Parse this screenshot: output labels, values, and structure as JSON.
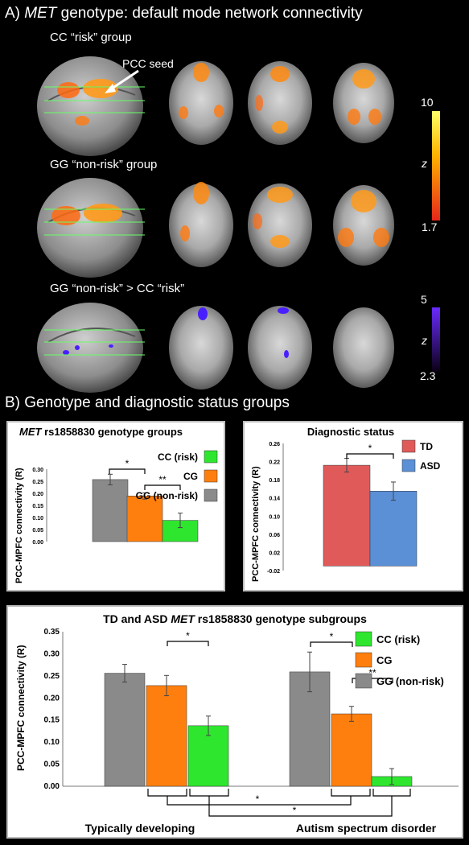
{
  "panel_a": {
    "title_prefix": "A) ",
    "title_gene": "MET",
    "title_rest": " genotype: default mode network connectivity",
    "rows": [
      {
        "label": "CC “risk” group"
      },
      {
        "label": "GG “non-risk” group"
      },
      {
        "label": "GG “non-risk” > CC “risk”"
      }
    ],
    "seed_label": "PCC seed",
    "colorbar1": {
      "max": "10",
      "min": "1.7",
      "axis": "z"
    },
    "colorbar2": {
      "max": "5",
      "min": "2.3",
      "axis": "z"
    }
  },
  "panel_b": {
    "title": "B) Genotype and diagnostic status groups"
  },
  "colors": {
    "gray": "#8a8a8a",
    "orange": "#ff7f0e",
    "green": "#2ee62e",
    "td_red": "#e05a5a",
    "asd_blue": "#5b8fd6"
  },
  "chart_data": [
    {
      "type": "bar",
      "title_gene": "MET",
      "title_rest": " rs1858830 genotype groups",
      "ylabel": "PCC-MPFC connectivity (R)",
      "ylim": [
        0,
        0.3
      ],
      "yticks": [
        "0.00",
        "0.05",
        "0.10",
        "0.15",
        "0.20",
        "0.25",
        "0.30"
      ],
      "categories": [
        "GG (non-risk)",
        "CG",
        "CC (risk)"
      ],
      "values": [
        0.257,
        0.189,
        0.088
      ],
      "errors": [
        0.022,
        0.013,
        0.03
      ],
      "legend": [
        "CC (risk)",
        "CG",
        "GG (non-risk)"
      ],
      "significance": [
        "*",
        "**"
      ]
    },
    {
      "type": "bar",
      "title": "Diagnostic status",
      "ylabel": "PCC-MPFC connectivity (R)",
      "ylim": [
        -0.02,
        0.26
      ],
      "yticks": [
        "-0.02",
        "0.02",
        "0.06",
        "0.10",
        "0.14",
        "0.18",
        "0.22",
        "0.26"
      ],
      "categories": [
        "TD",
        "ASD"
      ],
      "values": [
        0.212,
        0.155
      ],
      "errors": [
        0.015,
        0.02
      ],
      "legend": [
        "TD",
        "ASD"
      ],
      "significance": [
        "*"
      ]
    },
    {
      "type": "bar",
      "title_pre": "TD and ASD ",
      "title_gene": "MET",
      "title_rest": " rs1858830 genotype subgroups",
      "ylabel": "PCC-MPFC connectivity (R)",
      "ylim": [
        0,
        0.35
      ],
      "yticks": [
        "0.00",
        "0.05",
        "0.10",
        "0.15",
        "0.20",
        "0.25",
        "0.30",
        "0.35"
      ],
      "groups": [
        "Typically developing",
        "Autism spectrum disorder"
      ],
      "series": [
        {
          "name": "GG (non-risk)",
          "values": [
            0.256,
            0.259
          ],
          "errors": [
            0.02,
            0.045
          ]
        },
        {
          "name": "CG",
          "values": [
            0.228,
            0.164
          ],
          "errors": [
            0.023,
            0.017
          ]
        },
        {
          "name": "CC (risk)",
          "values": [
            0.137,
            0.022
          ],
          "errors": [
            0.022,
            0.018
          ]
        }
      ],
      "legend": [
        "CC (risk)",
        "CG",
        "GG (non-risk)"
      ],
      "significance": [
        "*",
        "*",
        "**",
        "*",
        "*"
      ]
    }
  ]
}
